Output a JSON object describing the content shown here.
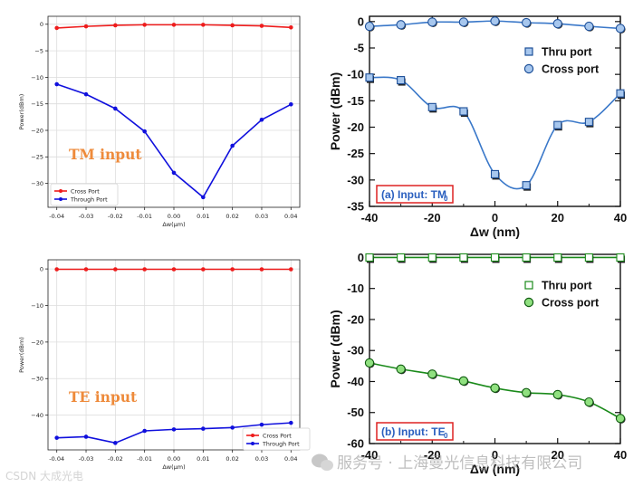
{
  "chart_data": [
    {
      "id": "tm_sim",
      "type": "line",
      "annotation": "TM input",
      "xlabel": "Δw(μm)",
      "ylabel": "Power(dBm)",
      "xlim": [
        -0.043,
        0.043
      ],
      "ylim": [
        -34.5,
        1.5
      ],
      "xticks": [
        -0.04,
        -0.03,
        -0.02,
        -0.01,
        0.0,
        0.01,
        0.02,
        0.03,
        0.04
      ],
      "xtick_labels": [
        "-0.04",
        "-0.03",
        "-0.02",
        "-0.01",
        "0.00",
        "0.01",
        "0.02",
        "0.03",
        "0.04"
      ],
      "yticks": [
        0,
        -5,
        -10,
        -15,
        -20,
        -25,
        -30
      ],
      "ytick_labels": [
        "0",
        "−5",
        "−10",
        "−15",
        "−20",
        "−25",
        "−30"
      ],
      "grid": true,
      "legend_position": "bottom-left",
      "x": [
        -0.04,
        -0.03,
        -0.02,
        -0.01,
        0.0,
        0.01,
        0.02,
        0.03,
        0.04
      ],
      "series": [
        {
          "name": "Cross Port",
          "color": "#ee1c1c",
          "values": [
            -0.7,
            -0.4,
            -0.2,
            -0.1,
            -0.1,
            -0.1,
            -0.2,
            -0.3,
            -0.6
          ]
        },
        {
          "name": "Through Port",
          "color": "#1010dd",
          "values": [
            -11.3,
            -13.2,
            -15.9,
            -20.2,
            -28.0,
            -32.6,
            -22.9,
            -18.0,
            -15.1
          ]
        }
      ]
    },
    {
      "id": "tm_exp",
      "type": "line",
      "annotation": "(a) Input: TM",
      "annotation_sub": "0",
      "xlabel": "Δw (nm)",
      "ylabel": "Power (dBm)",
      "xlim": [
        -40,
        40
      ],
      "ylim": [
        -35,
        1
      ],
      "xticks": [
        -40,
        -20,
        0,
        20,
        40
      ],
      "xtick_labels": [
        "-40",
        "-20",
        "0",
        "20",
        "40"
      ],
      "yticks": [
        0,
        -5,
        -10,
        -15,
        -20,
        -25,
        -30,
        -35
      ],
      "ytick_labels": [
        "0",
        "-5",
        "-10",
        "-15",
        "-20",
        "-25",
        "-30",
        "-35"
      ],
      "grid": false,
      "legend_position": "upper-right",
      "x": [
        -40,
        -30,
        -20,
        -10,
        0,
        10,
        20,
        30,
        40
      ],
      "series": [
        {
          "name": "Thru port",
          "marker": "square",
          "fill": "#a7c7ee",
          "color": "#3a78c9",
          "values": [
            -10.6,
            -11.1,
            -16.2,
            -17.0,
            -28.9,
            -31.0,
            -19.6,
            -19.0,
            -13.6
          ]
        },
        {
          "name": "Cross port",
          "marker": "circle",
          "fill": "#a7c7ee",
          "color": "#3a78c9",
          "values": [
            -0.9,
            -0.6,
            -0.1,
            -0.1,
            0.1,
            -0.2,
            -0.4,
            -0.9,
            -1.3
          ]
        }
      ]
    },
    {
      "id": "te_sim",
      "type": "line",
      "annotation": "TE input",
      "xlabel": "Δw(μm)",
      "ylabel": "Power(dBm)",
      "xlim": [
        -0.043,
        0.043
      ],
      "ylim": [
        -49.5,
        2.5
      ],
      "xticks": [
        -0.04,
        -0.03,
        -0.02,
        -0.01,
        0.0,
        0.01,
        0.02,
        0.03,
        0.04
      ],
      "xtick_labels": [
        "-0.04",
        "-0.03",
        "-0.02",
        "-0.01",
        "0.00",
        "0.01",
        "0.02",
        "0.03",
        "0.04"
      ],
      "yticks": [
        0,
        -10,
        -20,
        -30,
        -40
      ],
      "ytick_labels": [
        "0",
        "−10",
        "−20",
        "−30",
        "−40"
      ],
      "grid": true,
      "legend_position": "bottom-right",
      "x": [
        -0.04,
        -0.03,
        -0.02,
        -0.01,
        0.0,
        0.01,
        0.02,
        0.03,
        0.04
      ],
      "series": [
        {
          "name": "Cross Port",
          "color": "#ee1c1c",
          "values": [
            -0.1,
            -0.1,
            -0.1,
            -0.1,
            -0.1,
            -0.1,
            -0.1,
            -0.1,
            -0.1
          ]
        },
        {
          "name": "Through Port",
          "color": "#1010dd",
          "values": [
            -46.2,
            -45.9,
            -47.6,
            -44.3,
            -43.9,
            -43.7,
            -43.4,
            -42.6,
            -42.1
          ]
        }
      ]
    },
    {
      "id": "te_exp",
      "type": "line",
      "annotation": "(b) Input: TE",
      "annotation_sub": "0",
      "xlabel": "Δw (nm)",
      "ylabel": "Power (dBm)",
      "xlim": [
        -40,
        40
      ],
      "ylim": [
        -60,
        1
      ],
      "xticks": [
        -40,
        -20,
        0,
        20,
        40
      ],
      "xtick_labels": [
        "-40",
        "-20",
        "0",
        "20",
        "40"
      ],
      "yticks": [
        0,
        -10,
        -20,
        -30,
        -40,
        -50,
        -60
      ],
      "ytick_labels": [
        "0",
        "-10",
        "-20",
        "-30",
        "-40",
        "-50",
        "-60"
      ],
      "grid": false,
      "legend_position": "upper-right",
      "x": [
        -40,
        -30,
        -20,
        -10,
        0,
        10,
        20,
        30,
        40
      ],
      "series": [
        {
          "name": "Thru port",
          "marker": "square",
          "fill": "#ffffff",
          "color": "#1a8a1a",
          "values": [
            0,
            0,
            0,
            0,
            0,
            0,
            0,
            0,
            0
          ]
        },
        {
          "name": "Cross port",
          "marker": "circle",
          "fill": "#90e080",
          "color": "#1a8a1a",
          "values": [
            -34.0,
            -36.0,
            -37.6,
            -39.8,
            -42.1,
            -43.6,
            -44.2,
            -46.6,
            -51.9
          ]
        }
      ]
    }
  ],
  "watermark": {
    "left": "CSDN 大成光电",
    "right": "服务号 · 上海曼光信息科技有限公司"
  }
}
